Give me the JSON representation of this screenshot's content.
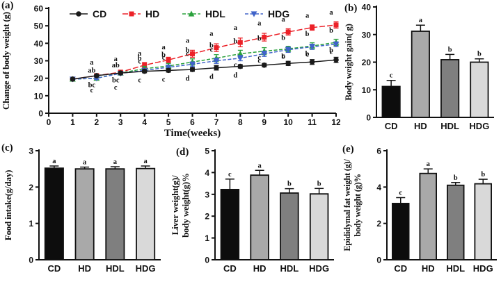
{
  "figure": {
    "background": "#ffffff",
    "panel_tags": {
      "a": "(a)",
      "b": "(b)",
      "c": "(c)",
      "d": "(d)",
      "e": "(e)"
    }
  },
  "groups": [
    "CD",
    "HD",
    "HDL",
    "HDG"
  ],
  "bar_colors": [
    "#0d0d0d",
    "#a9a9a9",
    "#7f7f7f",
    "#d9d9d9"
  ],
  "chart_data": [
    {
      "id": "a",
      "type": "line",
      "title": "",
      "xlabel": "Time(weeks)",
      "ylabel": "Change of body weight (g)",
      "xlim": [
        0,
        12
      ],
      "ylim": [
        0,
        60
      ],
      "xticks": [
        0,
        1,
        2,
        3,
        4,
        5,
        6,
        7,
        8,
        9,
        10,
        11,
        12
      ],
      "yticks": [
        0,
        10,
        20,
        30,
        40,
        50,
        60
      ],
      "x": [
        1,
        2,
        3,
        4,
        5,
        6,
        7,
        8,
        9,
        10,
        11,
        12
      ],
      "legend_position": "top",
      "series": [
        {
          "name": "CD",
          "color": "#1a1a1a",
          "marker": "circle",
          "dash": "",
          "values": [
            19.5,
            21.5,
            23,
            24,
            24.5,
            25,
            26,
            26.8,
            27.5,
            28.5,
            29.3,
            30.5
          ],
          "err": [
            0.4,
            0.6,
            0.7,
            0.9,
            1.0,
            1.0,
            1.3,
            1.0,
            1.0,
            1.2,
            1.4,
            1.5
          ],
          "letters": [
            "",
            "c",
            "c",
            "c",
            "c",
            "d",
            "d",
            "d",
            "c",
            "c",
            "c",
            "c"
          ],
          "letter_dy": [
            0,
            24,
            24,
            16,
            16,
            16,
            16,
            16,
            -8,
            -8,
            -8,
            -8
          ]
        },
        {
          "name": "HD",
          "color": "#ec2128",
          "marker": "square",
          "dash": "8,3",
          "values": [
            19.5,
            21.5,
            23.5,
            27.5,
            30.5,
            34,
            37.5,
            40.5,
            43.5,
            46.5,
            49,
            50.5
          ],
          "err": [
            0.5,
            0.7,
            1.0,
            1.5,
            1.5,
            2.0,
            2.2,
            2.5,
            2.2,
            1.8,
            1.5,
            1.8
          ],
          "letters": [
            "",
            "a",
            "a",
            "a",
            "a",
            "a",
            "a",
            "a",
            "a",
            "a",
            "a",
            "a"
          ],
          "letter_dy": [
            0,
            -16,
            -16,
            -14,
            -15,
            -16,
            -17,
            -18,
            -17,
            -15,
            -14,
            -15
          ]
        },
        {
          "name": "HDL",
          "color": "#2aa13c",
          "marker": "triangle-up",
          "dash": "5,2.5",
          "values": [
            19.5,
            20,
            23,
            25.5,
            27,
            29.3,
            31.5,
            34,
            35.5,
            36.8,
            38.5,
            40.5
          ],
          "err": [
            0.5,
            0.7,
            1.0,
            1.3,
            1.5,
            1.8,
            2.0,
            2.0,
            2.0,
            1.5,
            1.8,
            1.8
          ],
          "letters": [
            "",
            "ab",
            "ab",
            "b",
            "b",
            "b",
            "b",
            "b",
            "b",
            "b",
            "b",
            "b"
          ],
          "letter_dy": [
            0,
            -8,
            -8,
            -12,
            -13,
            -14,
            -15,
            -15,
            -15,
            -13,
            -14,
            -14
          ]
        },
        {
          "name": "HDG",
          "color": "#4063c9",
          "marker": "triangle-down",
          "dash": "5,2.5",
          "values": [
            19.5,
            20,
            22.8,
            24.5,
            26.3,
            28,
            30,
            31.5,
            34,
            36.3,
            38,
            39.5
          ],
          "err": [
            0.5,
            0.7,
            0.9,
            1.0,
            1.2,
            1.3,
            1.5,
            1.5,
            1.5,
            1.5,
            1.5,
            1.3
          ],
          "letters": [
            "",
            "bc",
            "bc",
            "c",
            "c",
            "c",
            "c",
            "c",
            "c",
            "b",
            "b",
            "b"
          ],
          "letter_dy": [
            0,
            13,
            13,
            -10,
            -11,
            -12,
            -13,
            13,
            13,
            13,
            13,
            12
          ]
        }
      ]
    },
    {
      "id": "b",
      "type": "bar",
      "ylabel": [
        "Body weight gain( g)"
      ],
      "categories": [
        "CD",
        "HD",
        "HDL",
        "HDG"
      ],
      "values": [
        11.2,
        31.2,
        20.9,
        20.0
      ],
      "err": [
        2.2,
        2.2,
        1.9,
        1.2
      ],
      "letters": [
        "c",
        "a",
        "b",
        "b"
      ],
      "ylim": [
        0,
        40
      ],
      "yticks": [
        0,
        10,
        20,
        30,
        40
      ]
    },
    {
      "id": "c",
      "type": "bar",
      "ylabel": [
        "Food intake(g/day)"
      ],
      "categories": [
        "CD",
        "HD",
        "HDL",
        "HDG"
      ],
      "values": [
        2.52,
        2.5,
        2.5,
        2.51
      ],
      "err": [
        0.06,
        0.05,
        0.06,
        0.07
      ],
      "letters": [
        "a",
        "a",
        "a",
        "a"
      ],
      "ylim": [
        0,
        3
      ],
      "yticks": [
        0,
        1,
        2,
        3
      ]
    },
    {
      "id": "d",
      "type": "bar",
      "ylabel": [
        "Liver weight(g)/",
        "body weight(g)%"
      ],
      "categories": [
        "CD",
        "HD",
        "HDL",
        "HDG"
      ],
      "values": [
        3.22,
        3.88,
        3.06,
        3.02
      ],
      "err": [
        0.48,
        0.22,
        0.2,
        0.25
      ],
      "letters": [
        "c",
        "a",
        "b",
        "b"
      ],
      "ylim": [
        0,
        5
      ],
      "yticks": [
        0,
        1,
        2,
        3,
        4,
        5
      ]
    },
    {
      "id": "e",
      "type": "bar",
      "ylabel": [
        "Epididymal fat weight (g)/",
        "body weight (g)%"
      ],
      "categories": [
        "CD",
        "HD",
        "HDL",
        "HDG"
      ],
      "values": [
        3.1,
        4.75,
        4.1,
        4.18
      ],
      "err": [
        0.32,
        0.25,
        0.15,
        0.25
      ],
      "letters": [
        "c",
        "a",
        "b",
        "b"
      ],
      "ylim": [
        0,
        6
      ],
      "yticks": [
        0,
        2,
        4,
        6
      ]
    }
  ]
}
